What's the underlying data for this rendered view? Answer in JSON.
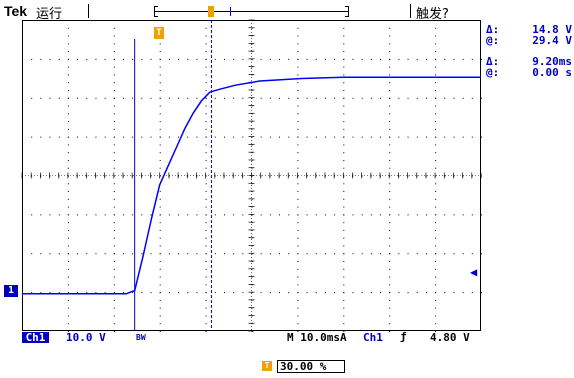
{
  "header": {
    "brand": "Tek",
    "run_state": "运行",
    "trigger_state": "触发?"
  },
  "cursor_readouts": {
    "delta_v_label": "Δ:",
    "delta_v_value": "14.8 V",
    "at_v_label": "@:",
    "at_v_value": "29.4 V",
    "delta_t_label": "Δ:",
    "delta_t_value": "9.20ms",
    "at_t_label": "@:",
    "at_t_value": "0.00 s"
  },
  "status_bar": {
    "channel": "Ch1",
    "volts_per_div": "10.0 V",
    "bw_limit": "BW",
    "time_per_div": "M 10.0ms",
    "trigger_mode": "A",
    "trigger_source": "Ch1",
    "trigger_slope": "ƒ",
    "trigger_level": "4.80 V"
  },
  "horizontal_position": {
    "icon": "T",
    "value": "30.00 %"
  },
  "markers": {
    "channel_marker": "1",
    "trigger_marker": "T"
  },
  "colors": {
    "trace": "#0000ff",
    "accent": "#0000c0",
    "trigger": "#f0a000"
  },
  "chart_data": {
    "type": "line",
    "title": "",
    "xlabel": "",
    "ylabel": "",
    "series": [
      {
        "x": [
          -13.5,
          -1.0,
          0.0,
          1.0,
          2.0,
          3.0,
          4.0,
          5.0,
          6.0,
          7.0,
          8.0,
          9.0,
          10.0,
          12.0,
          15.0,
          20.0,
          25.0,
          30.0,
          35.0,
          41.5
        ],
        "values": [
          -4.0,
          -4.0,
          -3.5,
          2.0,
          8.0,
          13.5,
          16.5,
          19.5,
          22.5,
          25.0,
          27.0,
          28.4,
          28.8,
          29.5,
          30.2,
          30.6,
          30.8,
          30.8,
          30.8,
          30.8
        ]
      }
    ],
    "xlim": [
      -13.5,
      41.5
    ],
    "ylim": [
      -10,
      40
    ],
    "grid": true
  }
}
